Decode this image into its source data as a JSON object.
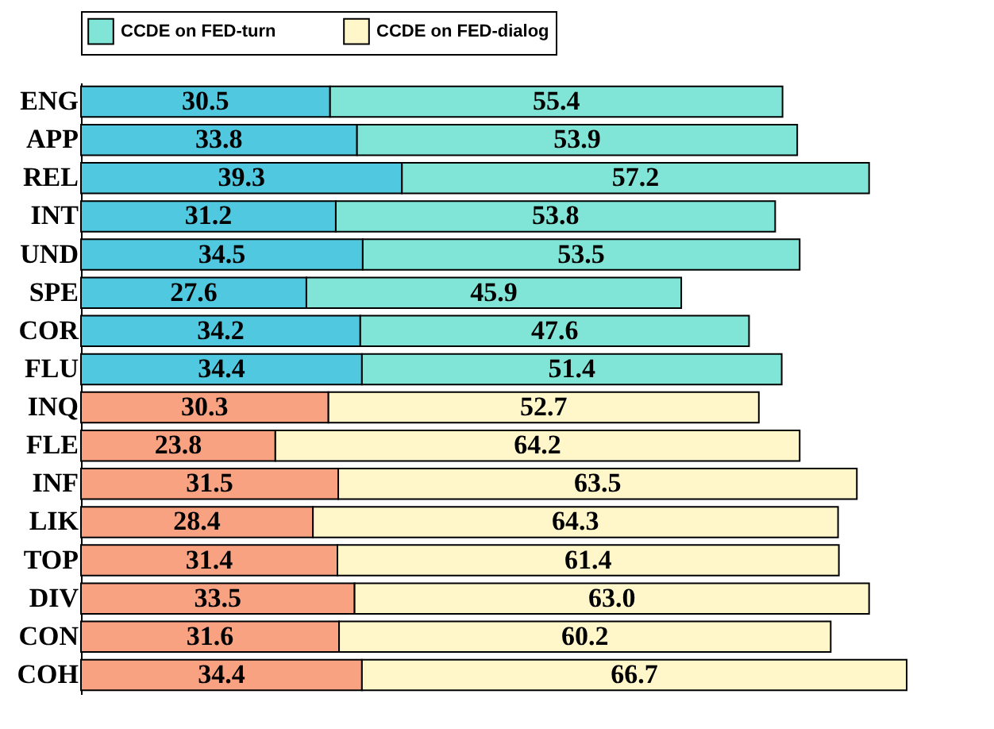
{
  "chart_data": {
    "type": "bar",
    "orientation": "horizontal",
    "stacked": true,
    "legend": "top",
    "tick_labels": "y",
    "categories": [
      "ENG",
      "APP",
      "REL",
      "INT",
      "UND",
      "SPE",
      "COR",
      "FLU",
      "INQ",
      "FLE",
      "INF",
      "LIK",
      "TOP",
      "DIV",
      "CON",
      "COH"
    ],
    "series": [
      {
        "color": "#4fc8e0",
        "values": [
          30.5,
          33.8,
          39.3,
          31.2,
          34.5,
          27.6,
          34.2,
          34.4,
          null,
          null,
          null,
          null,
          null,
          null,
          null,
          null
        ],
        "value_labels": [
          "30.5",
          "33.8",
          "39.3",
          "31.2",
          "34.5",
          "27.6",
          "34.2",
          "34.4",
          null,
          null,
          null,
          null,
          null,
          null,
          null,
          null
        ]
      },
      {
        "color": "#f9a282",
        "values": [
          null,
          null,
          null,
          null,
          null,
          null,
          null,
          null,
          30.3,
          23.8,
          31.5,
          28.4,
          31.4,
          33.5,
          31.6,
          34.4
        ],
        "value_labels": [
          null,
          null,
          null,
          null,
          null,
          null,
          null,
          null,
          "30.3",
          "23.8",
          "31.5",
          "28.4",
          "31.4",
          "33.5",
          "31.6",
          "34.4"
        ]
      },
      {
        "name": "CCDE on FED-turn",
        "color": "#80e5d6",
        "values": [
          55.4,
          53.9,
          57.2,
          53.8,
          53.5,
          45.9,
          47.6,
          51.4,
          null,
          null,
          null,
          null,
          null,
          null,
          null,
          null
        ],
        "value_labels": [
          "55.4",
          "53.9",
          "57.2",
          "53.8",
          "53.5",
          "45.9",
          "47.6",
          "51.4",
          null,
          null,
          null,
          null,
          null,
          null,
          null,
          null
        ]
      },
      {
        "name": "CCDE on FED-dialog",
        "color": "#fff6c9",
        "values": [
          null,
          null,
          null,
          null,
          null,
          null,
          null,
          null,
          52.7,
          64.2,
          63.5,
          64.3,
          61.4,
          63.0,
          60.2,
          66.7
        ],
        "value_labels": [
          null,
          null,
          null,
          null,
          null,
          null,
          null,
          null,
          "52.7",
          "64.2",
          "63.5",
          "64.3",
          "61.4",
          "63.0",
          "60.2",
          "66.7"
        ]
      }
    ]
  }
}
